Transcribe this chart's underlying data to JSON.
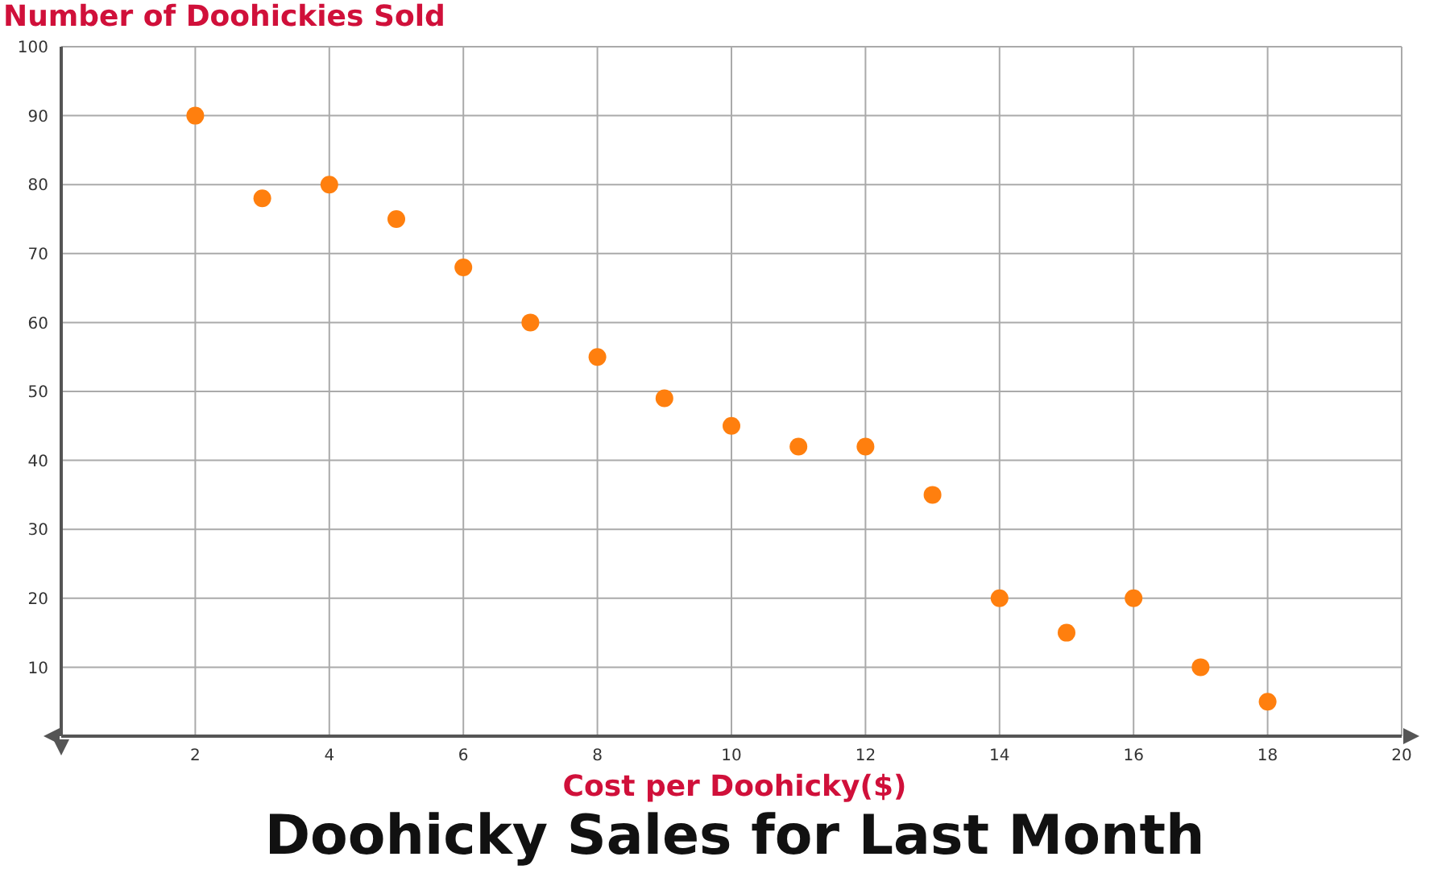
{
  "chart_data": {
    "type": "scatter",
    "title": "Doohicky Sales for Last Month",
    "xlabel": "Cost per Doohicky($)",
    "ylabel": "Number of Doohickies Sold",
    "x": [
      2,
      3,
      4,
      5,
      6,
      7,
      8,
      9,
      10,
      11,
      12,
      13,
      14,
      15,
      16,
      17,
      18
    ],
    "series": [
      {
        "color": "#ff7f0e",
        "values": [
          90,
          78,
          80,
          75,
          68,
          60,
          55,
          49,
          45,
          42,
          42,
          35,
          20,
          15,
          20,
          10,
          5
        ]
      }
    ],
    "xlim": [
      0,
      20
    ],
    "xticks": [
      2,
      4,
      6,
      8,
      10,
      12,
      14,
      16,
      18,
      20
    ],
    "ylim": [
      0,
      100
    ],
    "yticks": [
      10,
      20,
      30,
      40,
      50,
      60,
      70,
      80,
      90,
      100
    ],
    "grid": true,
    "marker": "circle"
  }
}
